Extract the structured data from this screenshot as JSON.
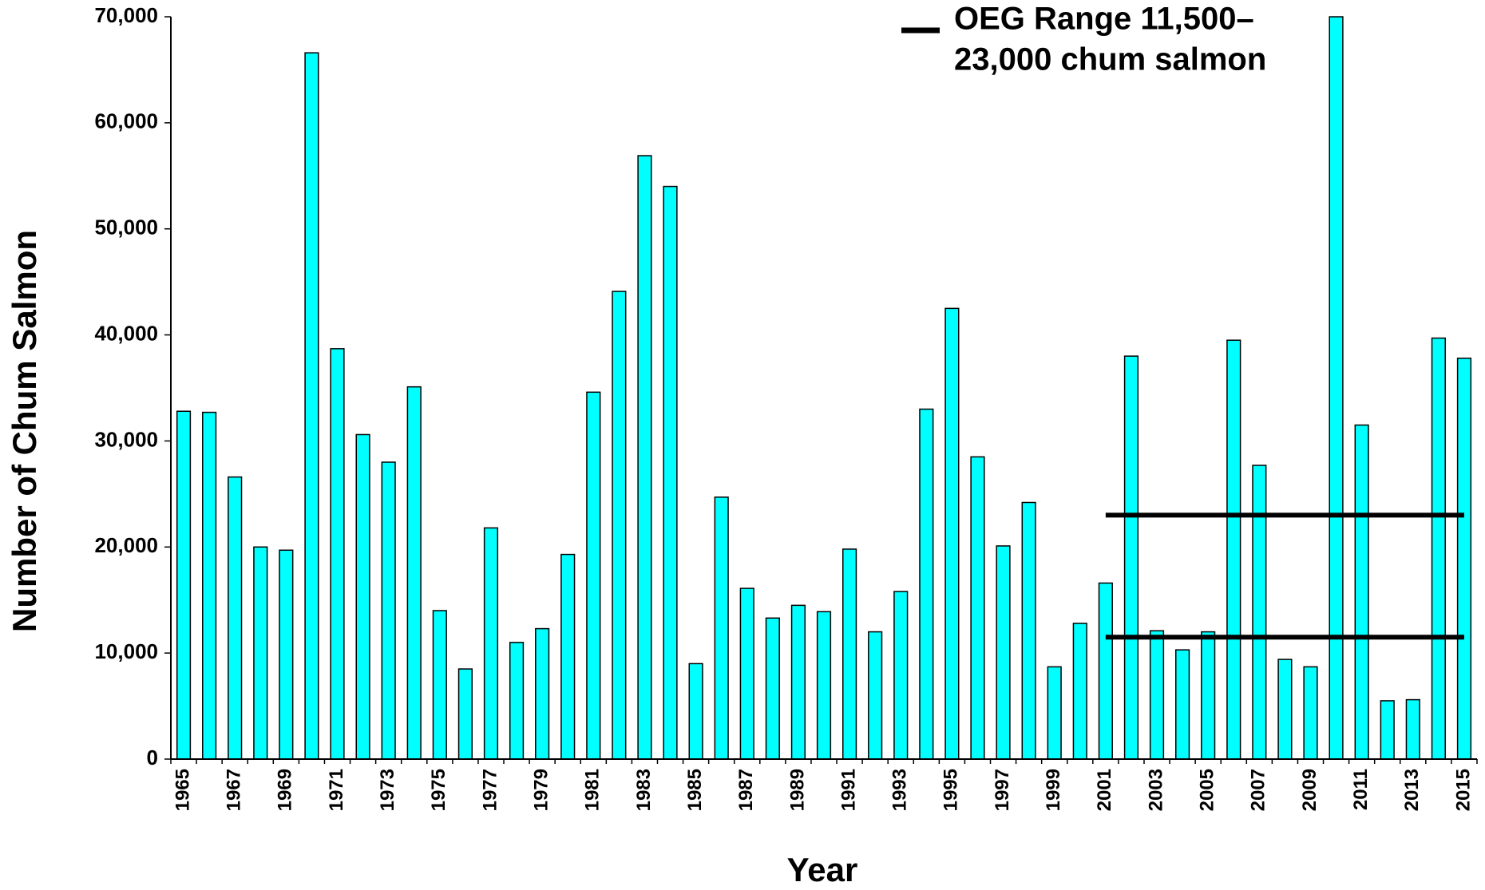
{
  "chart_data": {
    "type": "bar",
    "x_label": "Year",
    "y_label": "Number of Chum Salmon",
    "categories": [
      "1965",
      null,
      "1967",
      null,
      "1969",
      null,
      "1971",
      null,
      "1973",
      null,
      "1975",
      null,
      "1977",
      null,
      "1979",
      null,
      "1981",
      null,
      "1983",
      null,
      "1985",
      null,
      "1987",
      null,
      "1989",
      null,
      "1991",
      null,
      "1993",
      null,
      "1995",
      null,
      "1997",
      null,
      "1999",
      null,
      "2001",
      null,
      "2003",
      null,
      "2005",
      null,
      "2007",
      null,
      "2009",
      null,
      "2011",
      null,
      "2013",
      null,
      "2015"
    ],
    "values": [
      32800,
      32700,
      26600,
      20000,
      19700,
      66600,
      38700,
      30600,
      28000,
      35100,
      14000,
      8500,
      21800,
      11000,
      12300,
      19300,
      34600,
      44100,
      56900,
      54000,
      9000,
      24700,
      16100,
      13300,
      14500,
      13900,
      19800,
      12000,
      15800,
      33000,
      42500,
      28500,
      20100,
      24200,
      8700,
      12800,
      16600,
      38000,
      12100,
      10300,
      12000,
      39500,
      27700,
      9400,
      8700,
      70000,
      31500,
      5500,
      5600,
      39700,
      37800
    ],
    "color": "#00ffff",
    "ylim": [
      0,
      70000
    ],
    "yticks": [
      0,
      {
        "value": 10000,
        "label": "10,000"
      },
      {
        "value": 20000,
        "label": "20,000"
      },
      {
        "value": 30000,
        "label": "30,000"
      },
      {
        "value": 40000,
        "label": "40,000"
      },
      {
        "value": 50000,
        "label": "50,000"
      },
      {
        "value": 60000,
        "label": "60,000"
      },
      {
        "value": 70000,
        "label": "70,000"
      }
    ],
    "oeg_range": {
      "legend": [
        "OEG Range 11,500–",
        "23,000 chum salmon"
      ],
      "lower": 11500,
      "upper": 23000,
      "start": "2001",
      "end": "2015",
      "color": "#000000"
    }
  }
}
